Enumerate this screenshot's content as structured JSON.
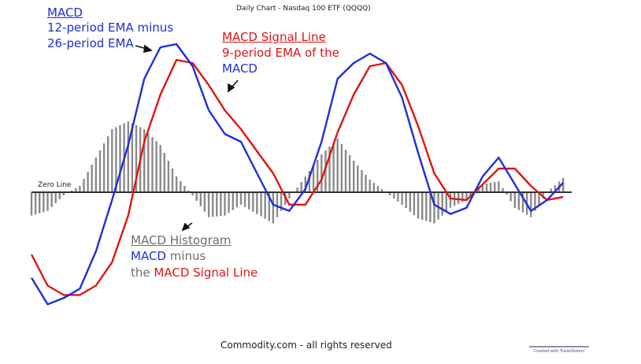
{
  "title": "Daily Chart - Nasdaq 100 ETF (QQQQ)",
  "footer": "Commodity.com - all rights reserved",
  "watermark": "Created with TradeStation",
  "zero_line_label": "Zero Line",
  "annotations": {
    "macd_title": "MACD",
    "macd_desc1": "12-period EMA minus",
    "macd_desc2": "26-period EMA",
    "signal_title": "MACD Signal Line",
    "signal_desc1": "9-period EMA of the",
    "signal_desc2": "MACD",
    "hist_title": "MACD Histogram",
    "hist_desc1": "MACD",
    "hist_desc1b": "minus",
    "hist_desc2a": "the",
    "hist_desc2b": "MACD Signal Line"
  },
  "colors": {
    "macd": "#1f2fd6",
    "signal": "#e01414",
    "histogram": "#8a8a8a",
    "zero_line": "#333333"
  },
  "chart_data": {
    "type": "line",
    "ylim": [
      -80,
      100
    ],
    "xlim": [
      0,
      100
    ],
    "grid": false,
    "series": [
      {
        "name": "MACD",
        "x": [
          0,
          3,
          6,
          9,
          12,
          15,
          18,
          21,
          24,
          27,
          30,
          33,
          36,
          39,
          42,
          45,
          48,
          51,
          54,
          57,
          60,
          63,
          66,
          69,
          72,
          75,
          78,
          81,
          84,
          87,
          90,
          93,
          96,
          99
        ],
        "values": [
          -55,
          -72,
          -68,
          -62,
          -38,
          -5,
          30,
          72,
          92,
          94,
          80,
          52,
          37,
          32,
          12,
          -8,
          -12,
          2,
          32,
          72,
          82,
          88,
          82,
          60,
          25,
          -8,
          -14,
          -10,
          10,
          22,
          5,
          -12,
          -5,
          6
        ]
      },
      {
        "name": "MACD Signal Line",
        "x": [
          0,
          3,
          6,
          9,
          12,
          15,
          18,
          21,
          24,
          27,
          30,
          33,
          36,
          39,
          42,
          45,
          48,
          51,
          54,
          57,
          60,
          63,
          66,
          69,
          72,
          75,
          78,
          81,
          84,
          87,
          90,
          93,
          96,
          99
        ],
        "values": [
          -40,
          -60,
          -66,
          -66,
          -60,
          -45,
          -15,
          32,
          62,
          84,
          82,
          68,
          52,
          40,
          26,
          12,
          -8,
          -8,
          8,
          38,
          62,
          80,
          82,
          68,
          42,
          12,
          -4,
          -5,
          5,
          15,
          15,
          4,
          -5,
          -3
        ]
      },
      {
        "name": "MACD Histogram",
        "type": "bar",
        "x": [
          0,
          3,
          6,
          9,
          12,
          15,
          18,
          21,
          24,
          27,
          30,
          33,
          36,
          39,
          42,
          45,
          48,
          51,
          54,
          57,
          60,
          63,
          66,
          69,
          72,
          75,
          78,
          81,
          84,
          87,
          90,
          93,
          96,
          99
        ],
        "values": [
          -15,
          -12,
          -2,
          4,
          22,
          40,
          45,
          40,
          30,
          10,
          -2,
          -16,
          -15,
          -8,
          -14,
          -20,
          -4,
          10,
          24,
          34,
          20,
          8,
          0,
          -8,
          -17,
          -20,
          -10,
          -5,
          5,
          7,
          -10,
          -16,
          0,
          9
        ]
      }
    ]
  }
}
